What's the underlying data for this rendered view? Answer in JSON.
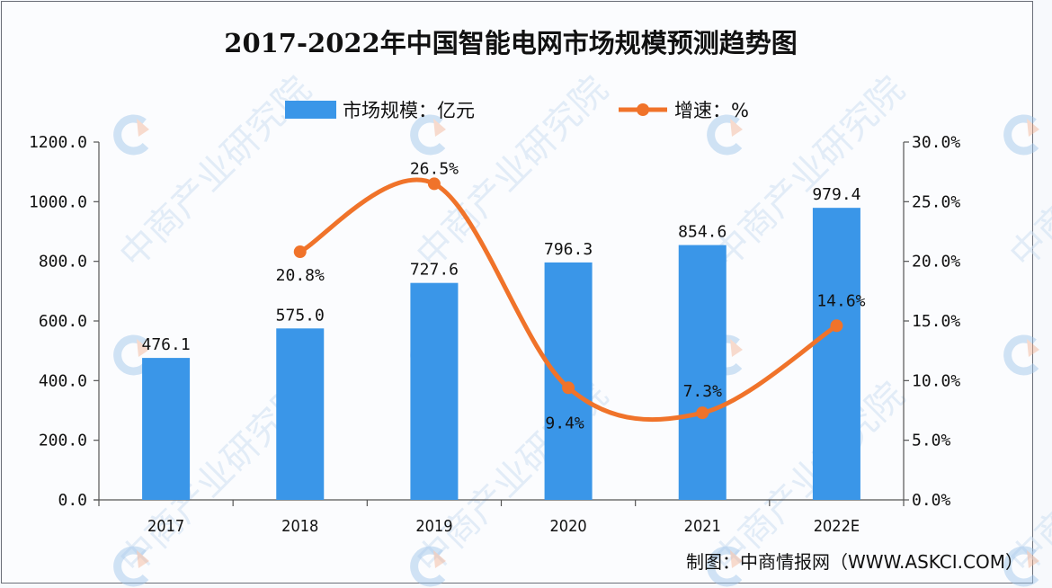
{
  "chart_data": {
    "type": "bar+line",
    "title": "2017-2022年中国智能电网市场规模预测趋势图",
    "categories": [
      "2017",
      "2018",
      "2019",
      "2020",
      "2021",
      "2022E"
    ],
    "series": [
      {
        "name": "市场规模：亿元",
        "type": "bar",
        "axis": "left",
        "color": "#3a96e8",
        "values": [
          476.1,
          575.0,
          727.6,
          796.3,
          854.6,
          979.4
        ],
        "labels": [
          "476.1",
          "575.0",
          "727.6",
          "796.3",
          "854.6",
          "979.4"
        ]
      },
      {
        "name": "增速：%",
        "type": "line",
        "axis": "right",
        "color": "#f0732a",
        "values": [
          null,
          20.8,
          26.5,
          9.4,
          7.3,
          14.6
        ],
        "labels": [
          "",
          "20.8%",
          "26.5%",
          "9.4%",
          "7.3%",
          "14.6%"
        ]
      }
    ],
    "y_left": {
      "range": [
        0,
        1200
      ],
      "ticks": [
        "0.0",
        "200.0",
        "400.0",
        "600.0",
        "800.0",
        "1000.0",
        "1200.0"
      ]
    },
    "y_right": {
      "range": [
        0,
        30
      ],
      "ticks": [
        "0.0%",
        "5.0%",
        "10.0%",
        "15.0%",
        "20.0%",
        "25.0%",
        "30.0%"
      ]
    },
    "legend": {
      "placement": "top-center",
      "items": [
        "市场规模：亿元",
        "增速：%"
      ]
    },
    "grid": false
  },
  "source_note": "制图：中商情报网（WWW.ASKCI.COM）",
  "watermark": {
    "text": "中商产业研究院",
    "colors": {
      "blue": "#9cc3ea",
      "orange": "#f3b292"
    }
  }
}
